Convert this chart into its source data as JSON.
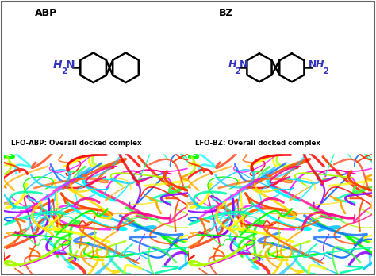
{
  "cell_labels": [
    "LFO-ABP: Overall docked complex",
    "LFO-BZ: Overall docked complex"
  ],
  "top_labels": [
    "ABP",
    "BZ"
  ],
  "label_color": "#000000",
  "amine_color": "#3333bb",
  "bg_white": "#ffffff",
  "bg_black": "#000000",
  "protein_colors": [
    "#ff0000",
    "#ff6600",
    "#ffaa00",
    "#ffff00",
    "#00ff00",
    "#00ffaa",
    "#00ccff",
    "#0066ff",
    "#8800ff",
    "#ff00ff",
    "#ff3300",
    "#aaff00",
    "#00ffff",
    "#ff0088",
    "#33ff33",
    "#ffdd00",
    "#ff4400",
    "#22ccff"
  ]
}
